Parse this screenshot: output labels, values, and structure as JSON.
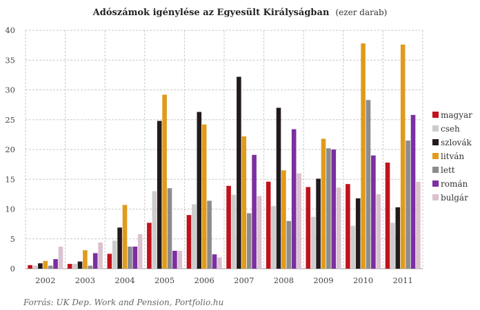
{
  "chart_data": {
    "type": "bar",
    "title": "Adószámok igénylése az Egyesült Királyságban",
    "subtitle": "(ezer darab)",
    "source": "Forrás: UK Dep. Work and Pension, Portfolio.hu",
    "categories": [
      "2002",
      "2003",
      "2004",
      "2005",
      "2006",
      "2007",
      "2008",
      "2009",
      "2010",
      "2011"
    ],
    "ylim": [
      0,
      40
    ],
    "yticks": [
      "0",
      "5",
      "10",
      "15",
      "20",
      "25",
      "30",
      "35",
      "40"
    ],
    "grid": true,
    "legend_position": "right",
    "series": [
      {
        "name": "magyar",
        "color": "#c0121c",
        "values": [
          0.6,
          0.8,
          2.5,
          7.7,
          9.0,
          13.9,
          14.6,
          13.7,
          14.2,
          17.8
        ]
      },
      {
        "name": "cseh",
        "color": "#cccccc",
        "values": [
          0.5,
          0.8,
          4.7,
          13.0,
          10.8,
          12.4,
          10.5,
          8.7,
          7.2,
          7.7
        ]
      },
      {
        "name": "szlovák",
        "color": "#231a1c",
        "values": [
          0.9,
          1.2,
          6.9,
          24.8,
          26.3,
          32.2,
          27.0,
          15.1,
          11.8,
          10.3
        ]
      },
      {
        "name": "litván",
        "color": "#e09b1b",
        "values": [
          1.3,
          3.1,
          10.7,
          29.2,
          24.2,
          22.2,
          16.5,
          21.8,
          37.8,
          37.6
        ]
      },
      {
        "name": "lett",
        "color": "#8c8c8c",
        "values": [
          0.5,
          0.5,
          3.7,
          13.5,
          11.4,
          9.3,
          8.0,
          20.2,
          28.3,
          21.5
        ]
      },
      {
        "name": "román",
        "color": "#7b2fa0",
        "values": [
          1.6,
          2.6,
          3.7,
          3.0,
          2.4,
          19.1,
          23.4,
          20.0,
          19.0,
          25.8
        ]
      },
      {
        "name": "bulgár",
        "color": "#dcc1cf",
        "values": [
          3.7,
          4.4,
          5.8,
          3.0,
          1.9,
          12.2,
          16.0,
          13.6,
          12.5,
          14.6
        ]
      }
    ]
  }
}
